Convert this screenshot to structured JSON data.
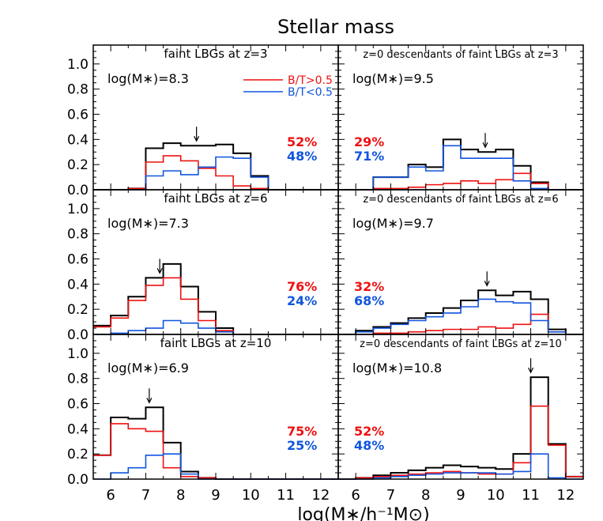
{
  "title": "Stellar mass",
  "xlabel": "log(M∗/h⁻¹M⊙)",
  "legend": [
    {
      "label": "B/T>0.5",
      "color": "#ee1111"
    },
    {
      "label": "B/T<0.5",
      "color": "#1155dd"
    }
  ],
  "colors": {
    "total": "#000000",
    "bulge": "#ee1111",
    "disk": "#1155dd"
  },
  "y_tick_labels": [
    "0.0",
    "0.2",
    "0.4",
    "0.6",
    "0.8",
    "1.0"
  ],
  "x_tick_labels": [
    "6",
    "7",
    "8",
    "9",
    "10",
    "11",
    "12"
  ],
  "chart_data": [
    {
      "type": "histogram",
      "panel": "top-left",
      "title": "faint LBGs at z=3",
      "mass_label": "log(M∗)=8.3",
      "arrow_x": 8.45,
      "bulge_pct": "52%",
      "disk_pct": "48%",
      "xlim": [
        5.5,
        12.5
      ],
      "ylim": [
        0.0,
        1.15
      ],
      "bin_edges": [
        5.5,
        6.0,
        6.5,
        7.0,
        7.5,
        8.0,
        8.5,
        9.0,
        9.5,
        10.0,
        10.5,
        11.0,
        11.5,
        12.0,
        12.5
      ],
      "series": [
        {
          "key": "total",
          "values": [
            0,
            0,
            0.01,
            0.33,
            0.37,
            0.35,
            0.35,
            0.36,
            0.29,
            0.11,
            0,
            0,
            0,
            0
          ]
        },
        {
          "key": "bulge",
          "values": [
            0,
            0,
            0.01,
            0.22,
            0.27,
            0.23,
            0.17,
            0.11,
            0.03,
            0.01,
            0,
            0,
            0,
            0
          ]
        },
        {
          "key": "disk",
          "values": [
            0,
            0,
            0,
            0.11,
            0.15,
            0.12,
            0.18,
            0.26,
            0.25,
            0.1,
            0,
            0,
            0,
            0
          ]
        }
      ]
    },
    {
      "type": "histogram",
      "panel": "top-right",
      "title": "z=0 descendants of faint LBGs at z=3",
      "mass_label": "log(M∗)=9.5",
      "arrow_x": 9.7,
      "bulge_pct": "29%",
      "disk_pct": "71%",
      "xlim": [
        5.5,
        12.5
      ],
      "ylim": [
        0.0,
        1.15
      ],
      "bin_edges": [
        5.5,
        6.0,
        6.5,
        7.0,
        7.5,
        8.0,
        8.5,
        9.0,
        9.5,
        10.0,
        10.5,
        11.0,
        11.5,
        12.0,
        12.5
      ],
      "series": [
        {
          "key": "total",
          "values": [
            0,
            0,
            0.1,
            0.1,
            0.2,
            0.18,
            0.4,
            0.32,
            0.3,
            0.32,
            0.19,
            0.06,
            0,
            0
          ]
        },
        {
          "key": "bulge",
          "values": [
            0,
            0,
            0.01,
            0.01,
            0.02,
            0.04,
            0.05,
            0.07,
            0.05,
            0.08,
            0.13,
            0.05,
            0,
            0
          ]
        },
        {
          "key": "disk",
          "values": [
            0,
            0,
            0.1,
            0.1,
            0.18,
            0.15,
            0.35,
            0.25,
            0.25,
            0.25,
            0.07,
            0.01,
            0,
            0
          ]
        }
      ]
    },
    {
      "type": "histogram",
      "panel": "middle-left",
      "title": "faint LBGs at z=6",
      "mass_label": "log(M∗)=7.3",
      "arrow_x": 7.4,
      "bulge_pct": "76%",
      "disk_pct": "24%",
      "xlim": [
        5.5,
        12.5
      ],
      "ylim": [
        0.0,
        1.15
      ],
      "bin_edges": [
        5.5,
        6.0,
        6.5,
        7.0,
        7.5,
        8.0,
        8.5,
        9.0,
        9.5,
        10.0,
        10.5,
        11.0,
        11.5,
        12.0,
        12.5
      ],
      "series": [
        {
          "key": "total",
          "values": [
            0.07,
            0.15,
            0.3,
            0.45,
            0.56,
            0.38,
            0.18,
            0.05,
            0,
            0,
            0,
            0,
            0,
            0
          ]
        },
        {
          "key": "bulge",
          "values": [
            0.06,
            0.13,
            0.27,
            0.39,
            0.45,
            0.28,
            0.11,
            0.03,
            0,
            0,
            0,
            0,
            0,
            0
          ]
        },
        {
          "key": "disk",
          "values": [
            0,
            0.01,
            0.03,
            0.05,
            0.11,
            0.09,
            0.05,
            0.02,
            0,
            0,
            0,
            0,
            0,
            0
          ]
        }
      ]
    },
    {
      "type": "histogram",
      "panel": "middle-right",
      "title": "z=0 descendants of faint LBGs at z=6",
      "mass_label": "log(M∗)=9.7",
      "arrow_x": 9.75,
      "bulge_pct": "32%",
      "disk_pct": "68%",
      "xlim": [
        5.5,
        12.5
      ],
      "ylim": [
        0.0,
        1.15
      ],
      "bin_edges": [
        5.5,
        6.0,
        6.5,
        7.0,
        7.5,
        8.0,
        8.5,
        9.0,
        9.5,
        10.0,
        10.5,
        11.0,
        11.5,
        12.0,
        12.5
      ],
      "series": [
        {
          "key": "total",
          "values": [
            0,
            0.03,
            0.06,
            0.09,
            0.13,
            0.17,
            0.21,
            0.27,
            0.35,
            0.31,
            0.34,
            0.28,
            0.04,
            0
          ]
        },
        {
          "key": "bulge",
          "values": [
            0,
            0,
            0.01,
            0.01,
            0.02,
            0.03,
            0.04,
            0.04,
            0.06,
            0.05,
            0.08,
            0.16,
            0.02,
            0
          ]
        },
        {
          "key": "disk",
          "values": [
            0,
            0.02,
            0.05,
            0.08,
            0.11,
            0.14,
            0.17,
            0.22,
            0.28,
            0.26,
            0.25,
            0.11,
            0.02,
            0
          ]
        }
      ]
    },
    {
      "type": "histogram",
      "panel": "bottom-left",
      "title": "faint LBGs at z=10",
      "mass_label": "log(M∗)=6.9",
      "arrow_x": 7.1,
      "bulge_pct": "75%",
      "disk_pct": "25%",
      "xlim": [
        5.5,
        12.5
      ],
      "ylim": [
        0.0,
        1.15
      ],
      "bin_edges": [
        5.5,
        6.0,
        6.5,
        7.0,
        7.5,
        8.0,
        8.5,
        9.0,
        9.5,
        10.0,
        10.5,
        11.0,
        11.5,
        12.0,
        12.5
      ],
      "series": [
        {
          "key": "total",
          "values": [
            0.19,
            0.49,
            0.48,
            0.57,
            0.29,
            0.06,
            0.01,
            0,
            0,
            0,
            0,
            0,
            0,
            0
          ]
        },
        {
          "key": "bulge",
          "values": [
            0.19,
            0.44,
            0.4,
            0.38,
            0.09,
            0.02,
            0.01,
            0,
            0,
            0,
            0,
            0,
            0,
            0
          ]
        },
        {
          "key": "disk",
          "values": [
            0,
            0.05,
            0.09,
            0.19,
            0.2,
            0.04,
            0,
            0,
            0,
            0,
            0,
            0,
            0,
            0
          ]
        }
      ]
    },
    {
      "type": "histogram",
      "panel": "bottom-right",
      "title": "z=0 descendants of faint LBGs at z=10",
      "mass_label": "log(M∗)=10.8",
      "arrow_x": 11.0,
      "bulge_pct": "52%",
      "disk_pct": "48%",
      "xlim": [
        5.5,
        12.5
      ],
      "ylim": [
        0.0,
        1.15
      ],
      "bin_edges": [
        5.5,
        6.0,
        6.5,
        7.0,
        7.5,
        8.0,
        8.5,
        9.0,
        9.5,
        10.0,
        10.5,
        11.0,
        11.5,
        12.0,
        12.5
      ],
      "series": [
        {
          "key": "total",
          "values": [
            0,
            0.01,
            0.03,
            0.05,
            0.07,
            0.09,
            0.11,
            0.1,
            0.09,
            0.08,
            0.2,
            0.81,
            0.28,
            0.02
          ]
        },
        {
          "key": "bulge",
          "values": [
            0,
            0.01,
            0.02,
            0.03,
            0.04,
            0.05,
            0.06,
            0.05,
            0.04,
            0.04,
            0.13,
            0.58,
            0.27,
            0.02
          ]
        },
        {
          "key": "disk",
          "values": [
            0,
            0,
            0.01,
            0.02,
            0.03,
            0.04,
            0.05,
            0.05,
            0.05,
            0.04,
            0.06,
            0.2,
            0.01,
            0
          ]
        }
      ]
    }
  ]
}
